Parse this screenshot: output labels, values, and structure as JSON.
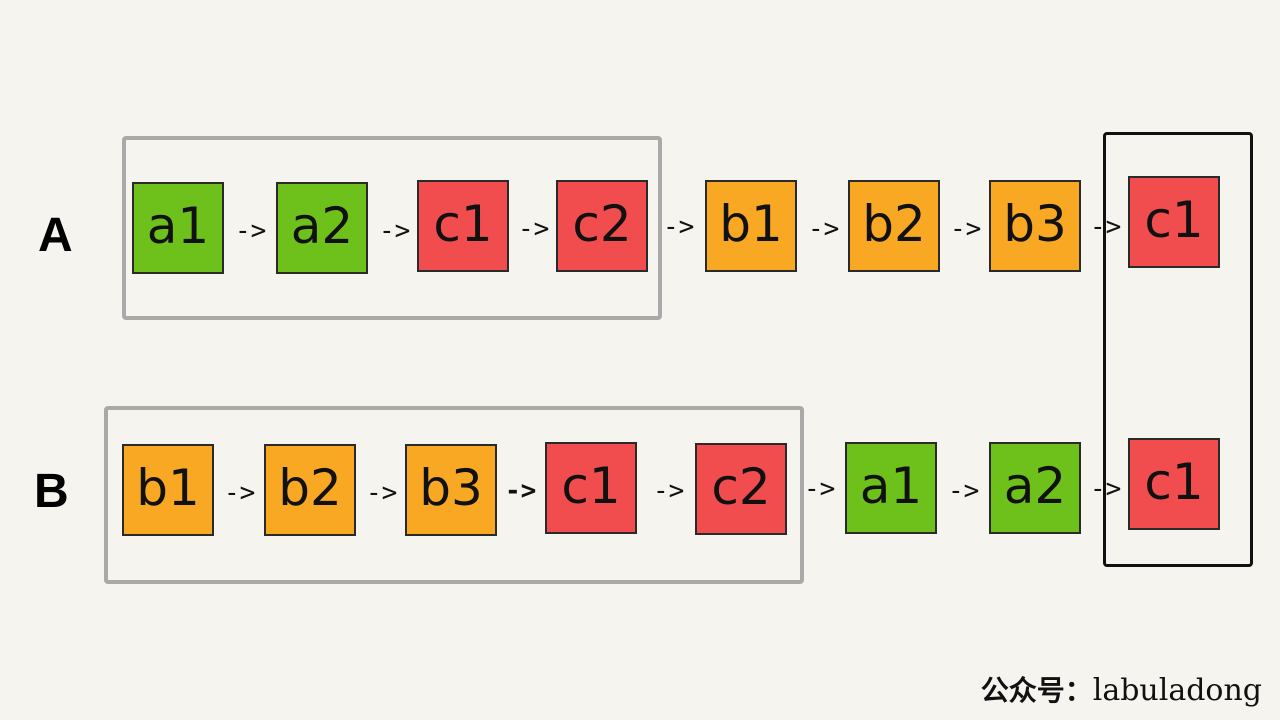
{
  "diagram": {
    "rows": [
      {
        "label": "A",
        "nodes": [
          {
            "text": "a1",
            "color": "green"
          },
          {
            "text": "a2",
            "color": "green"
          },
          {
            "text": "c1",
            "color": "red"
          },
          {
            "text": "c2",
            "color": "red"
          },
          {
            "text": "b1",
            "color": "orange"
          },
          {
            "text": "b2",
            "color": "orange"
          },
          {
            "text": "b3",
            "color": "orange"
          },
          {
            "text": "c1",
            "color": "red"
          }
        ]
      },
      {
        "label": "B",
        "nodes": [
          {
            "text": "b1",
            "color": "orange"
          },
          {
            "text": "b2",
            "color": "orange"
          },
          {
            "text": "b3",
            "color": "orange"
          },
          {
            "text": "c1",
            "color": "red"
          },
          {
            "text": "c2",
            "color": "red"
          },
          {
            "text": "a1",
            "color": "green"
          },
          {
            "text": "a2",
            "color": "green"
          },
          {
            "text": "c1",
            "color": "red"
          }
        ]
      }
    ],
    "arrow_text": "->",
    "colors": {
      "green": "#6ec11b",
      "red": "#f24d4e",
      "orange": "#f8a823",
      "group_box": "#a9aaa8",
      "common_box": "#111111"
    }
  },
  "watermark": {
    "prefix": "公众号：",
    "name": "labuladong"
  }
}
